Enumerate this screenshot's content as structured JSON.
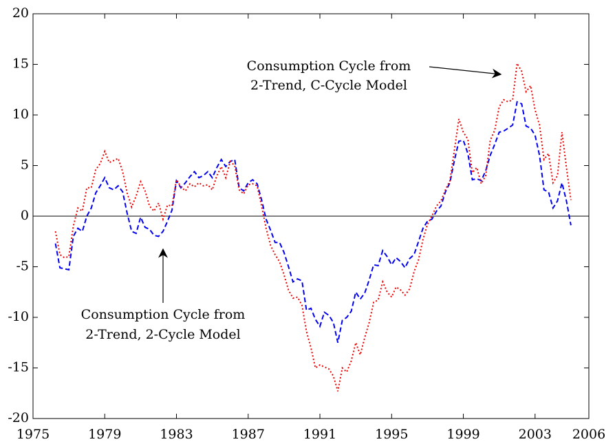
{
  "chart_data": {
    "type": "line",
    "x": [
      1976.25,
      1976.5,
      1976.75,
      1977,
      1977.25,
      1977.5,
      1977.75,
      1978,
      1978.25,
      1978.5,
      1978.75,
      1979,
      1979.25,
      1979.5,
      1979.75,
      1980,
      1980.25,
      1980.5,
      1980.75,
      1981,
      1981.25,
      1981.5,
      1981.75,
      1982,
      1982.25,
      1982.5,
      1982.75,
      1983,
      1983.25,
      1983.5,
      1983.75,
      1984,
      1984.25,
      1984.5,
      1984.75,
      1985,
      1985.25,
      1985.5,
      1985.75,
      1986,
      1986.25,
      1986.5,
      1986.75,
      1987,
      1987.25,
      1987.5,
      1987.75,
      1988,
      1988.25,
      1988.5,
      1988.75,
      1989,
      1989.25,
      1989.5,
      1989.75,
      1990,
      1990.25,
      1990.5,
      1990.75,
      1991,
      1991.25,
      1991.5,
      1991.75,
      1992,
      1992.25,
      1992.5,
      1992.75,
      1993,
      1993.25,
      1993.5,
      1993.75,
      1994,
      1994.25,
      1994.5,
      1994.75,
      1995,
      1995.25,
      1995.5,
      1995.75,
      1996,
      1996.25,
      1996.5,
      1996.75,
      1997,
      1997.25,
      1997.5,
      1997.75,
      1998,
      1998.25,
      1998.5,
      1998.75,
      1999,
      1999.25,
      1999.5,
      1999.75,
      2000,
      2000.25,
      2000.5,
      2000.75,
      2001,
      2001.25,
      2001.5,
      2001.75,
      2002,
      2002.25,
      2002.5,
      2002.75,
      2003,
      2003.25,
      2003.5,
      2003.75,
      2004,
      2004.25,
      2004.5,
      2004.75,
      2005
    ],
    "series": [
      {
        "color": "#0000ee",
        "dash": "dashed",
        "values": [
          -2.7,
          -5.1,
          -5.2,
          -5.3,
          -2.0,
          -1.2,
          -1.5,
          0,
          0.8,
          2.3,
          3.0,
          3.8,
          2.8,
          2.6,
          3.0,
          2.4,
          0.3,
          -1.5,
          -1.7,
          -0.1,
          -1.1,
          -1.3,
          -1.9,
          -2.0,
          -1.5,
          -0.5,
          0.6,
          3.5,
          2.8,
          3.3,
          3.9,
          4.4,
          3.8,
          4.0,
          4.4,
          3.8,
          4.8,
          5.6,
          4.9,
          5.4,
          5.6,
          2.8,
          2.5,
          3.3,
          3.6,
          3.2,
          1.6,
          -0.3,
          -1.4,
          -2.6,
          -2.6,
          -3.6,
          -5.0,
          -6.5,
          -6.2,
          -6.4,
          -9.3,
          -9.1,
          -10.2,
          -10.9,
          -9.5,
          -9.8,
          -10.5,
          -12.5,
          -10.3,
          -10.0,
          -9.4,
          -7.5,
          -8.2,
          -7.6,
          -6.3,
          -4.8,
          -4.9,
          -3.4,
          -4.0,
          -4.8,
          -4.1,
          -4.5,
          -5.1,
          -4.2,
          -3.8,
          -2.5,
          -1.2,
          -0.5,
          -0.3,
          0.5,
          1.0,
          2.4,
          3.3,
          5.5,
          7.4,
          7.5,
          6.2,
          3.6,
          3.7,
          3.5,
          4.5,
          6.0,
          7.1,
          8.3,
          8.4,
          8.7,
          9.0,
          11.3,
          11.1,
          8.9,
          8.7,
          8.0,
          6.0,
          2.6,
          2.4,
          0.8,
          1.5,
          3.3,
          1.5,
          -0.9
        ]
      },
      {
        "color": "#ee0000",
        "dash": "dotted",
        "values": [
          -1.5,
          -3.8,
          -4.1,
          -4.0,
          -1.0,
          0.8,
          0.5,
          2.8,
          2.8,
          4.6,
          5.2,
          6.4,
          5.3,
          5.5,
          5.7,
          4.4,
          2.3,
          0.9,
          2.0,
          3.4,
          2.5,
          1.0,
          0.5,
          1.3,
          -0.3,
          1.1,
          1.0,
          3.6,
          2.9,
          2.5,
          3.2,
          2.9,
          3.3,
          3.0,
          3.1,
          2.6,
          4.0,
          4.9,
          3.8,
          5.4,
          5.0,
          2.6,
          2.2,
          3.1,
          3.2,
          3.0,
          1.0,
          -1.2,
          -2.9,
          -3.8,
          -4.5,
          -5.8,
          -7.3,
          -8.1,
          -8.0,
          -8.8,
          -11.4,
          -13.0,
          -15.0,
          -14.7,
          -14.9,
          -15.1,
          -15.8,
          -17.3,
          -15.0,
          -15.4,
          -14.3,
          -12.5,
          -13.7,
          -12.0,
          -10.5,
          -8.5,
          -8.3,
          -6.5,
          -7.5,
          -8.0,
          -7.0,
          -7.3,
          -7.8,
          -7.2,
          -5.5,
          -4.3,
          -2.3,
          -0.8,
          0.0,
          1.0,
          1.5,
          2.6,
          3.5,
          6.5,
          9.6,
          8.3,
          7.6,
          4.3,
          4.8,
          3.2,
          4.0,
          7.5,
          8.5,
          10.8,
          11.5,
          11.3,
          11.5,
          15.1,
          14.3,
          12.3,
          12.9,
          10.5,
          9.0,
          5.6,
          6.2,
          3.3,
          4.0,
          8.3,
          4.8,
          1.6
        ]
      }
    ],
    "hline": 0,
    "xlim": [
      1975,
      2006
    ],
    "xticks": [
      1975,
      1979,
      1983,
      1987,
      1991,
      1995,
      1999,
      2003,
      2006
    ],
    "ylim": [
      -20,
      20
    ],
    "yticks": [
      -20,
      -15,
      -10,
      -5,
      0,
      5,
      10,
      15,
      20
    ],
    "annotations": [
      {
        "lines": [
          "Consumption Cycle from",
          "2-Trend, C-Cycle Model"
        ]
      },
      {
        "lines": [
          "Consumption Cycle from",
          "2-Trend, 2-Cycle Model"
        ]
      }
    ]
  }
}
